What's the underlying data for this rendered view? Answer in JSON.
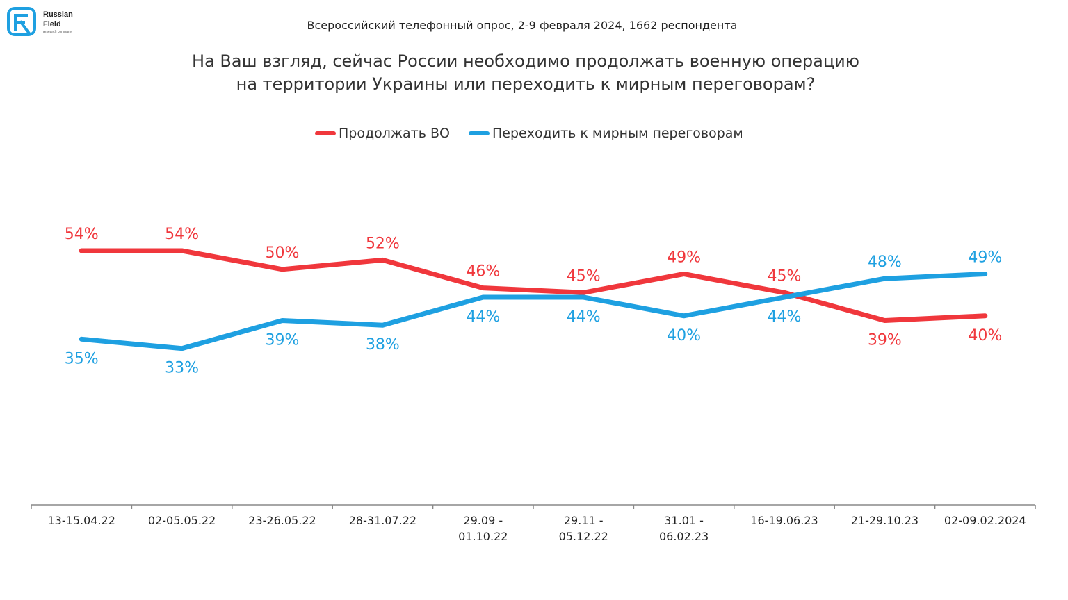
{
  "logo": {
    "line1": "Russian",
    "line2": "Field",
    "line3": "research company",
    "icon": "rf-logo-icon"
  },
  "survey_note": "Всероссийский телефонный опрос, 2-9 февраля 2024, 1662 респондента",
  "question": {
    "line1": "На Ваш взгляд, сейчас России необходимо продолжать военную операцию",
    "line2": "на территории Украины или переходить к мирным переговорам?"
  },
  "colors": {
    "red": "#f0373c",
    "blue": "#1ea0e1",
    "axis": "#888888"
  },
  "chart_data": {
    "type": "line",
    "categories": [
      "13-15.04.22",
      "02-05.05.22",
      "23-26.05.22",
      "28-31.07.22",
      "29.09 - 01.10.22",
      "29.11 - 05.12.22",
      "31.01 - 06.02.23",
      "16-19.06.23",
      "21-29.10.23",
      "02-09.02.2024"
    ],
    "category_lines": [
      [
        "13-15.04.22"
      ],
      [
        "02-05.05.22"
      ],
      [
        "23-26.05.22"
      ],
      [
        "28-31.07.22"
      ],
      [
        "29.09 -",
        "01.10.22"
      ],
      [
        "29.11 -",
        "05.12.22"
      ],
      [
        "31.01 -",
        "06.02.23"
      ],
      [
        "16-19.06.23"
      ],
      [
        "21-29.10.23"
      ],
      [
        "02-09.02.2024"
      ]
    ],
    "series": [
      {
        "name": "Продолжать ВО",
        "color": "#f0373c",
        "values": [
          54,
          54,
          50,
          52,
          46,
          45,
          49,
          45,
          39,
          40
        ],
        "labels": [
          "54%",
          "54%",
          "50%",
          "52%",
          "46%",
          "45%",
          "49%",
          "45%",
          "39%",
          "40%"
        ]
      },
      {
        "name": "Переходить к мирным переговорам",
        "color": "#1ea0e1",
        "values": [
          35,
          33,
          39,
          38,
          44,
          44,
          40,
          44,
          48,
          49
        ],
        "labels": [
          "35%",
          "33%",
          "39%",
          "38%",
          "44%",
          "44%",
          "40%",
          "44%",
          "48%",
          "49%"
        ]
      }
    ],
    "ylim": [
      0,
      100
    ],
    "unit": "%",
    "legend_position": "top-center",
    "grid": false
  }
}
